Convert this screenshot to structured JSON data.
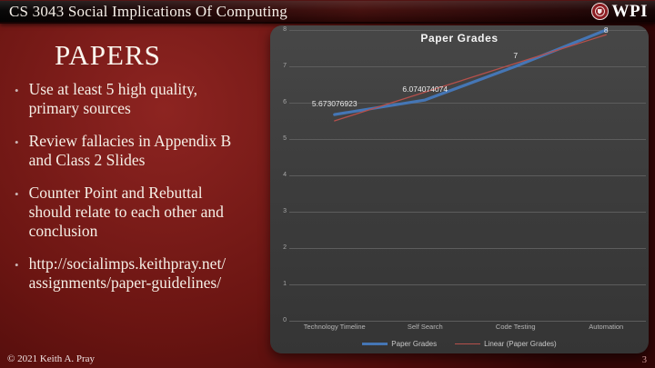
{
  "header": {
    "title": "CS 3043 Social Implications Of Computing",
    "logo_text": "WPI"
  },
  "content": {
    "title": "PAPERS",
    "bullets": [
      [
        "Use at least 5 high quality,",
        "primary sources"
      ],
      [
        "Review fallacies in Appendix B",
        "and Class 2 Slides"
      ],
      [
        "Counter Point and Rebuttal",
        "should relate to each other and",
        "conclusion"
      ],
      [
        "http://socialimps.keithpray.net/",
        "assignments/paper-guidelines/"
      ]
    ]
  },
  "footer": {
    "copyright": "© 2021 Keith A. Pray",
    "page_number": "3"
  },
  "chart_data": {
    "type": "line",
    "title": "Paper Grades",
    "categories": [
      "Technology Timeline",
      "Self Search",
      "Code Testing",
      "Automation"
    ],
    "series": [
      {
        "name": "Paper Grades",
        "values": [
          5.673076923,
          6.074074074,
          7,
          8
        ],
        "color": "#4576b5"
      },
      {
        "name": "Linear (Paper Grades)",
        "values": [
          5.5,
          6.29,
          7.08,
          7.87
        ],
        "color": "#b5504c"
      }
    ],
    "data_labels": [
      "5.673076923",
      "6.074074074",
      "7",
      "8"
    ],
    "ylim": [
      0,
      8
    ],
    "ytick_interval": 1,
    "grid": true,
    "legend_position": "bottom"
  }
}
